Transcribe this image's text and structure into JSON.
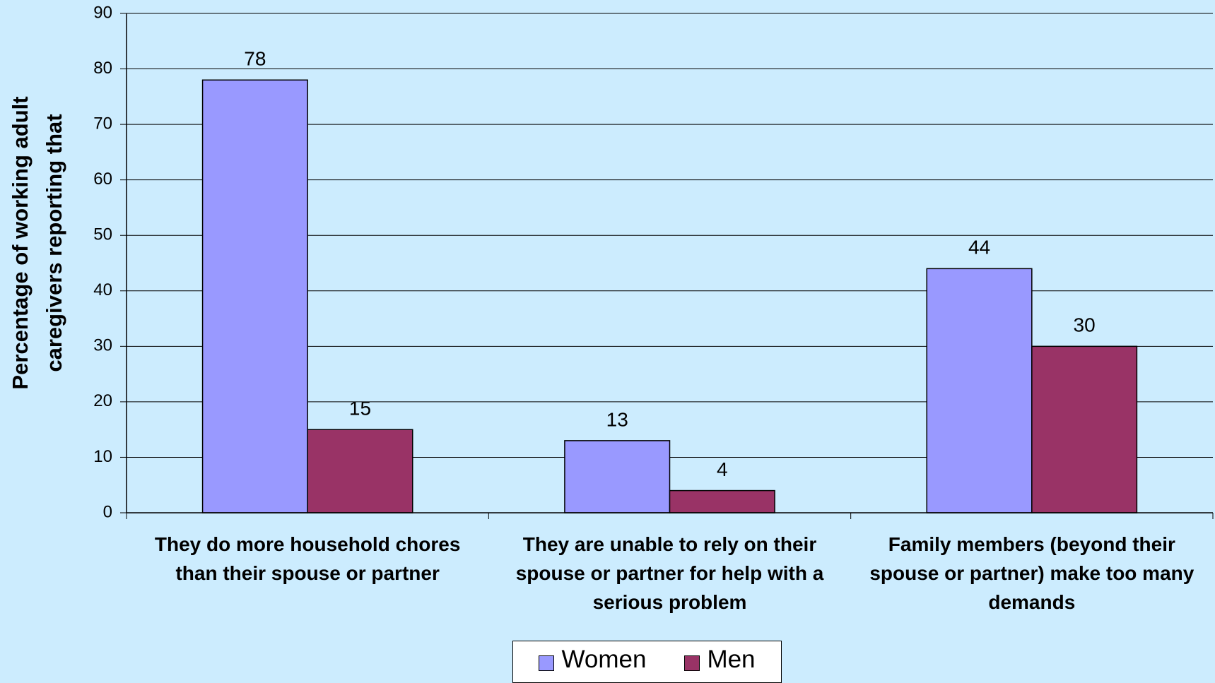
{
  "chart_data": {
    "type": "bar",
    "y_axis_label": "Percentage of working adult caregivers reporting that",
    "categories": [
      "They do more household chores than their spouse or partner",
      "They are unable to rely on their spouse or partner for help with a serious problem",
      "Family members (beyond their spouse or partner) make too many demands"
    ],
    "series": [
      {
        "name": "Women",
        "color": "#9999ff",
        "values": [
          78,
          13,
          44
        ]
      },
      {
        "name": "Men",
        "color": "#993366",
        "values": [
          15,
          4,
          30
        ]
      }
    ],
    "ylim": [
      0,
      90
    ],
    "yticks": [
      0,
      10,
      20,
      30,
      40,
      50,
      60,
      70,
      80,
      90
    ],
    "grid": true,
    "legend": "bottom"
  }
}
